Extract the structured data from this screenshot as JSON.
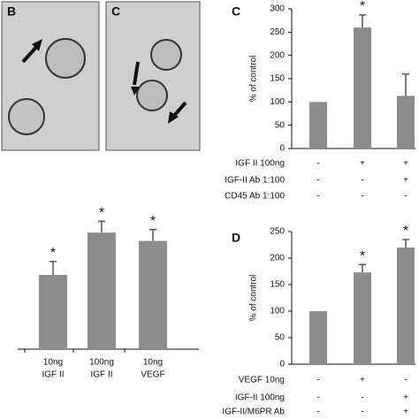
{
  "panels": [
    {
      "label": "B"
    },
    {
      "label": "C"
    }
  ],
  "chart_data": [
    {
      "type": "bar",
      "categories": [
        [
          "10ng",
          "IGF II"
        ],
        [
          "100ng",
          "IGF II"
        ],
        [
          "10ng",
          "VEGF"
        ]
      ],
      "values": [
        72,
        113,
        105
      ],
      "errors": [
        13,
        11,
        11
      ],
      "color": "#8c8c8c",
      "ylim": [
        0,
        150
      ],
      "annotations": [
        {
          "index": 0,
          "text": "*"
        },
        {
          "index": 1,
          "text": "*"
        },
        {
          "index": 2,
          "text": "*"
        }
      ]
    },
    {
      "type": "bar",
      "panel_label": "C",
      "y_label": "% of control",
      "values": [
        100,
        260,
        113
      ],
      "errors": [
        0,
        27,
        47
      ],
      "color": "#8c8c8c",
      "ylim": [
        0,
        300
      ],
      "yticks": [
        0,
        50,
        100,
        150,
        200,
        250,
        300
      ],
      "conditions": [
        {
          "label": "IGF II 100ng",
          "signs": [
            "-",
            "+",
            "+"
          ]
        },
        {
          "label": "IGF-II Ab 1:100",
          "signs": [
            "-",
            "-",
            "+"
          ]
        },
        {
          "label": "CD45 Ab 1:100",
          "signs": [
            "-",
            "-",
            "-"
          ]
        }
      ],
      "annotations": [
        {
          "index": 1,
          "text": "*"
        }
      ]
    },
    {
      "type": "bar",
      "panel_label": "D",
      "y_label": "% of control",
      "values": [
        100,
        173,
        220
      ],
      "errors": [
        0,
        15,
        15
      ],
      "color": "#8c8c8c",
      "ylim": [
        0,
        250
      ],
      "yticks": [
        0,
        50,
        100,
        150,
        200,
        250
      ],
      "conditions": [
        {
          "label": "VEGF 10ng",
          "signs": [
            "-",
            "+",
            "-"
          ]
        },
        {
          "label": "IGF-II 100ng",
          "signs": [
            "-",
            "-",
            "+"
          ]
        },
        {
          "label": "IGF-II/M6PR Ab",
          "signs": [
            "-",
            "-",
            "+"
          ]
        }
      ],
      "annotations": [
        {
          "index": 1,
          "text": "*"
        },
        {
          "index": 2,
          "text": "*"
        }
      ]
    }
  ]
}
